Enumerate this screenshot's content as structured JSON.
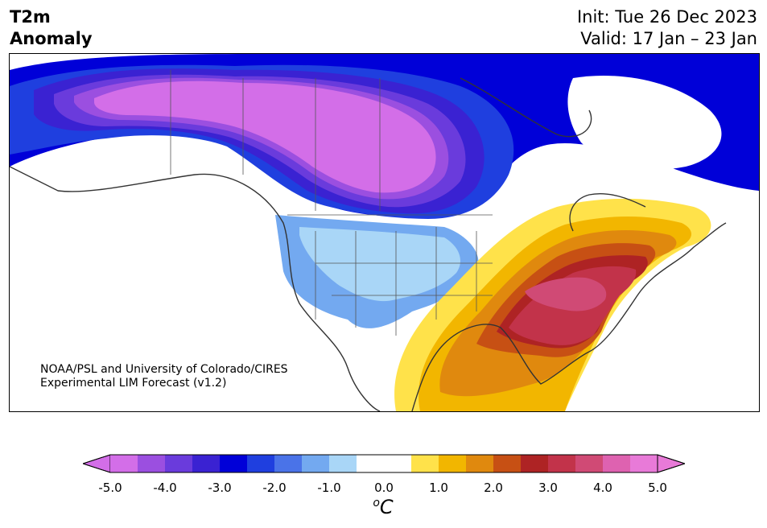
{
  "header": {
    "variable": "T2m",
    "subtitle": "Anomaly",
    "init": "Init: Tue 26 Dec 2023",
    "valid": "Valid: 17 Jan – 23 Jan"
  },
  "map": {
    "region": "North America",
    "credit_line1": "NOAA/PSL and University of Colorado/CIRES",
    "credit_line2": "Experimental LIM Forecast (v1.2)"
  },
  "colorbar": {
    "unit": "oC",
    "ticks": [
      "-5.0",
      "-4.0",
      "-3.0",
      "-2.0",
      "-1.0",
      "0.0",
      "1.0",
      "2.0",
      "3.0",
      "4.0",
      "5.0"
    ],
    "colors": [
      "#d36ee8",
      "#9b4fe0",
      "#6a3bdc",
      "#3a22d2",
      "#0000d8",
      "#1f3fdf",
      "#4a73e8",
      "#73a9f0",
      "#a9d6f7",
      "#ffffff",
      "#ffffff",
      "#ffe24a",
      "#f2b600",
      "#e0890e",
      "#c75014",
      "#ae2324",
      "#c2334a",
      "#d04a75",
      "#de62b0",
      "#e87ad8"
    ]
  }
}
